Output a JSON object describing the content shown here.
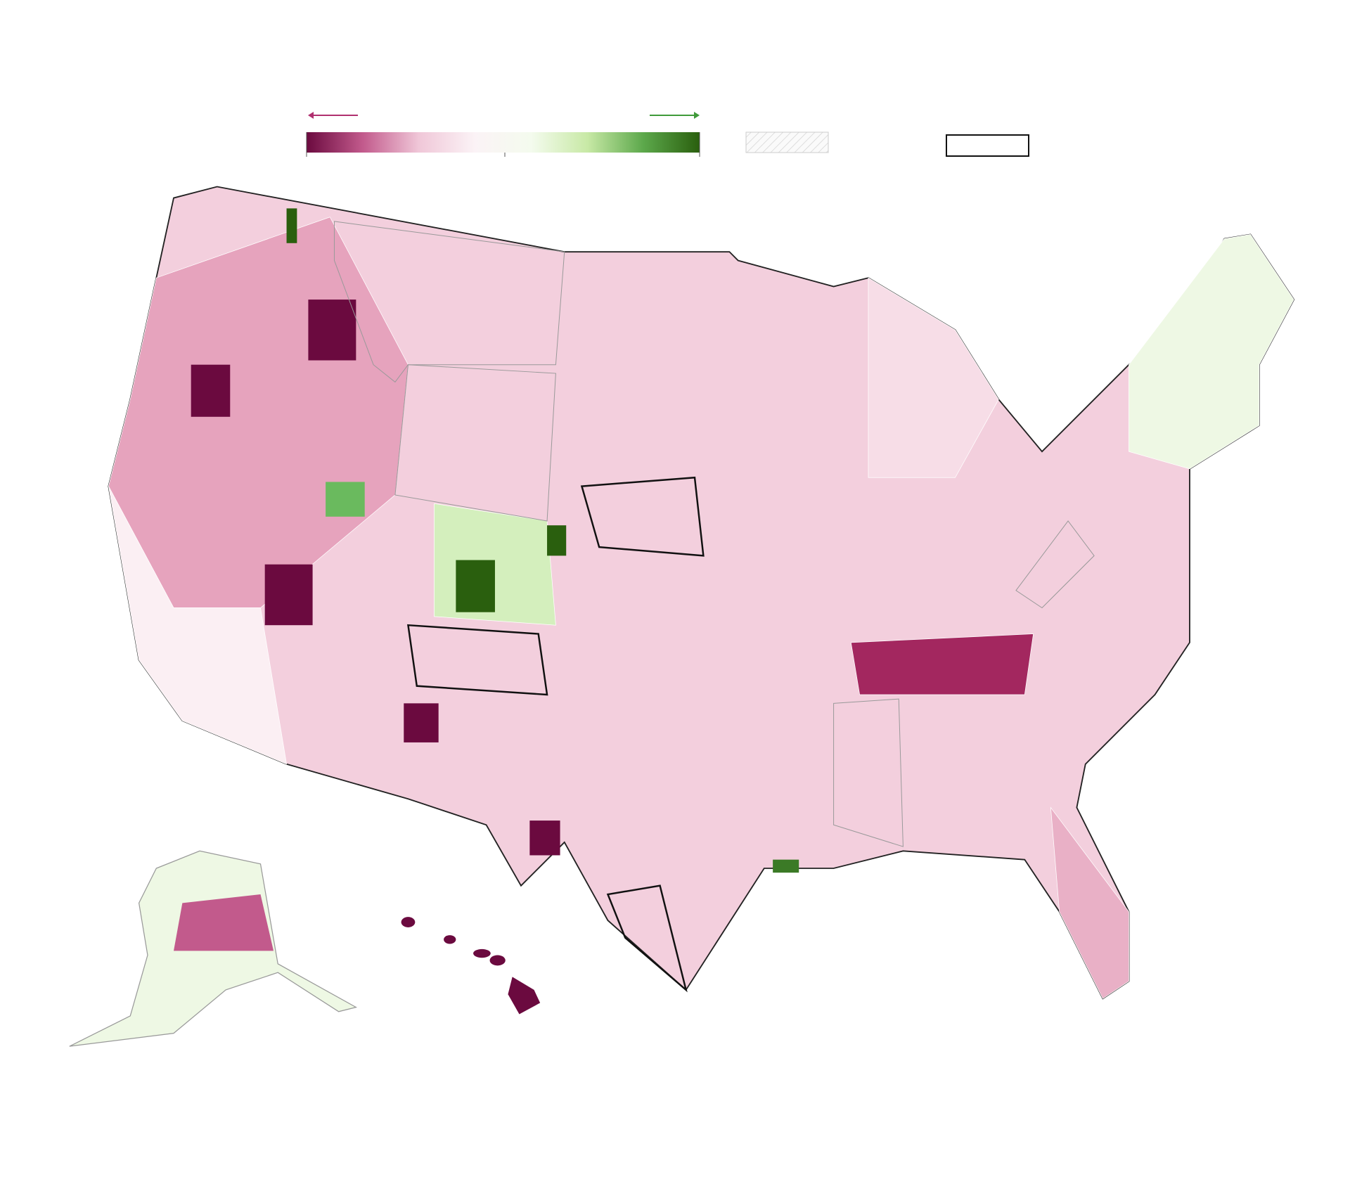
{
  "legend": {
    "gradient": [
      "#6b0a3f",
      "#c25a8c",
      "#f0c7d8",
      "#fbf3f6",
      "#f4fbee",
      "#c8e9a6",
      "#5ca84b",
      "#2a5f0e"
    ],
    "left_arrow_color": "#b0306f",
    "right_arrow_color": "#3f9a3a"
  }
}
